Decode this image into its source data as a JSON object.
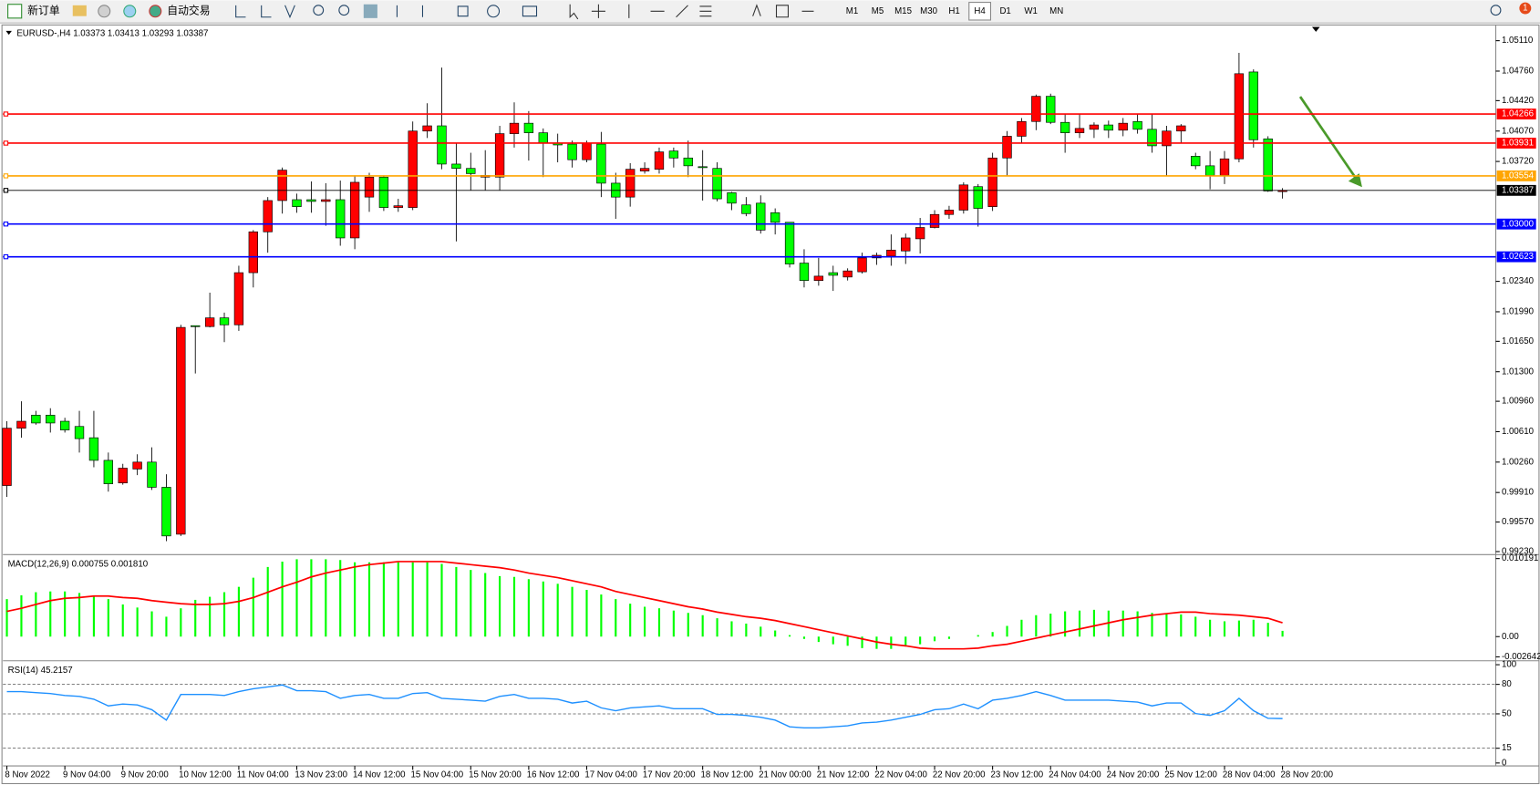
{
  "toolbar": {
    "new_order": "新订单",
    "auto_trading": "自动交易",
    "timeframes": [
      "M1",
      "M5",
      "M15",
      "M30",
      "H1",
      "H4",
      "D1",
      "W1",
      "MN"
    ],
    "active_timeframe": "H4",
    "notifications": "1"
  },
  "chart_data": [
    {
      "type": "candlestick",
      "title": "EURUSD-,H4  1.03373 1.03413 1.03293 1.03387",
      "up_color": "#ff0000",
      "down_color": "#00ff00",
      "ylim": [
        0.99206,
        1.05257
      ],
      "yticks": [
        {
          "value": 1.0511,
          "label": "1.05110"
        },
        {
          "value": 1.0476,
          "label": "1.04760"
        },
        {
          "value": 1.0442,
          "label": "1.04420"
        },
        {
          "value": 1.0407,
          "label": "1.04070"
        },
        {
          "value": 1.0372,
          "label": "1.03720"
        },
        {
          "value": 1.0234,
          "label": "1.02340"
        },
        {
          "value": 1.0199,
          "label": "1.01990"
        },
        {
          "value": 1.0165,
          "label": "1.01650"
        },
        {
          "value": 1.013,
          "label": "1.01300"
        },
        {
          "value": 1.0096,
          "label": "1.00960"
        },
        {
          "value": 1.0061,
          "label": "1.00610"
        },
        {
          "value": 1.0026,
          "label": "1.00260"
        },
        {
          "value": 0.9991,
          "label": "0.99910"
        },
        {
          "value": 0.9957,
          "label": "0.99570"
        },
        {
          "value": 0.9923,
          "label": "0.99230"
        }
      ],
      "x_labels": [
        "8 Nov 2022",
        "9 Nov 04:00",
        "9 Nov 20:00",
        "10 Nov 12:00",
        "11 Nov 04:00",
        "13 Nov 23:00",
        "14 Nov 12:00",
        "15 Nov 04:00",
        "15 Nov 20:00",
        "16 Nov 12:00",
        "17 Nov 04:00",
        "17 Nov 20:00",
        "18 Nov 12:00",
        "21 Nov 00:00",
        "21 Nov 12:00",
        "22 Nov 04:00",
        "22 Nov 20:00",
        "23 Nov 12:00",
        "24 Nov 04:00",
        "24 Nov 20:00",
        "25 Nov 12:00",
        "28 Nov 04:00",
        "28 Nov 20:00"
      ],
      "hlines": {
        "values": [
          1.04266,
          1.03931,
          1.03554,
          1.03387,
          1.03,
          1.02623
        ],
        "value_labels": [
          "1.04266",
          "1.03931",
          "1.03554",
          "1.03387",
          "1.03000",
          "1.02623"
        ],
        "colors": [
          "#ff0000",
          "#ff0000",
          "#ffa500",
          "#000000",
          "#0000ff",
          "#0000ff"
        ]
      },
      "ohlc": [
        [
          0.9999,
          1.0073,
          0.9986,
          1.0065
        ],
        [
          1.0065,
          1.0096,
          1.0054,
          1.0073
        ],
        [
          1.008,
          1.0085,
          1.0069,
          1.0071
        ],
        [
          1.008,
          1.0088,
          1.006,
          1.0071
        ],
        [
          1.0073,
          1.0077,
          1.006,
          1.0063
        ],
        [
          1.0067,
          1.0085,
          1.0037,
          1.0053
        ],
        [
          1.0054,
          1.0085,
          1.002,
          1.0028
        ],
        [
          1.0028,
          1.0037,
          0.9992,
          1.0001
        ],
        [
          1.0002,
          1.0024,
          1.0,
          1.0019
        ],
        [
          1.0018,
          1.0035,
          1.0011,
          1.0026
        ],
        [
          1.0026,
          1.0043,
          0.9994,
          0.9997
        ],
        [
          0.9997,
          1.0012,
          0.9935,
          0.9941
        ],
        [
          0.9943,
          1.0184,
          0.9941,
          1.0181
        ],
        [
          1.0183,
          1.0183,
          1.0128,
          1.0182
        ],
        [
          1.0182,
          1.0221,
          1.0181,
          1.0192
        ],
        [
          1.0192,
          1.0198,
          1.0164,
          1.0184
        ],
        [
          1.0184,
          1.0252,
          1.0177,
          1.0244
        ],
        [
          1.0244,
          1.0293,
          1.0227,
          1.0291
        ],
        [
          1.0291,
          1.0331,
          1.0267,
          1.0327
        ],
        [
          1.0327,
          1.0365,
          1.0312,
          1.0362
        ],
        [
          1.0328,
          1.0335,
          1.0313,
          1.032
        ],
        [
          1.0328,
          1.0349,
          1.0313,
          1.0326
        ],
        [
          1.0326,
          1.0347,
          1.0298,
          1.0328
        ],
        [
          1.0328,
          1.035,
          1.0275,
          1.0284
        ],
        [
          1.0284,
          1.0356,
          1.0271,
          1.0348
        ],
        [
          1.0331,
          1.0359,
          1.0314,
          1.0354
        ],
        [
          1.0354,
          1.0356,
          1.0315,
          1.0319
        ],
        [
          1.0319,
          1.0329,
          1.0314,
          1.0321
        ],
        [
          1.0319,
          1.0418,
          1.0316,
          1.0407
        ],
        [
          1.0407,
          1.0439,
          1.0399,
          1.0413
        ],
        [
          1.0413,
          1.048,
          1.0363,
          1.0369
        ],
        [
          1.0369,
          1.0393,
          1.028,
          1.0364
        ],
        [
          1.0364,
          1.0382,
          1.0339,
          1.0358
        ],
        [
          1.0354,
          1.0385,
          1.0339,
          1.0356
        ],
        [
          1.0354,
          1.0413,
          1.0339,
          1.0404
        ],
        [
          1.0404,
          1.044,
          1.0388,
          1.0416
        ],
        [
          1.0416,
          1.043,
          1.0373,
          1.0405
        ],
        [
          1.0405,
          1.041,
          1.0354,
          1.0393
        ],
        [
          1.0393,
          1.0404,
          1.0371,
          1.0391
        ],
        [
          1.0392,
          1.0396,
          1.0365,
          1.0374
        ],
        [
          1.0374,
          1.0396,
          1.0371,
          1.0393
        ],
        [
          1.0392,
          1.0406,
          1.0331,
          1.0347
        ],
        [
          1.0347,
          1.0359,
          1.0306,
          1.0331
        ],
        [
          1.0331,
          1.037,
          1.032,
          1.0363
        ],
        [
          1.0361,
          1.0371,
          1.0358,
          1.0364
        ],
        [
          1.0363,
          1.0388,
          1.0358,
          1.0383
        ],
        [
          1.0384,
          1.0388,
          1.0365,
          1.0376
        ],
        [
          1.0376,
          1.0396,
          1.0354,
          1.0367
        ],
        [
          1.0366,
          1.0385,
          1.0327,
          1.0365
        ],
        [
          1.0364,
          1.0371,
          1.0326,
          1.0329
        ],
        [
          1.0336,
          1.0337,
          1.0316,
          1.0324
        ],
        [
          1.0322,
          1.0331,
          1.0309,
          1.0312
        ],
        [
          1.0324,
          1.0333,
          1.0289,
          1.0293
        ],
        [
          1.0313,
          1.0318,
          1.0288,
          1.0302
        ],
        [
          1.0302,
          1.0302,
          1.025,
          1.0254
        ],
        [
          1.0255,
          1.0271,
          1.0227,
          1.0235
        ],
        [
          1.0235,
          1.0261,
          1.0229,
          1.024
        ],
        [
          1.0244,
          1.0252,
          1.0223,
          1.0241
        ],
        [
          1.0239,
          1.0249,
          1.0235,
          1.0246
        ],
        [
          1.0245,
          1.0267,
          1.0243,
          1.0261
        ],
        [
          1.0261,
          1.0267,
          1.0253,
          1.0264
        ],
        [
          1.0263,
          1.0288,
          1.0252,
          1.027
        ],
        [
          1.0269,
          1.0289,
          1.0254,
          1.0284
        ],
        [
          1.0283,
          1.0307,
          1.0266,
          1.0296
        ],
        [
          1.0296,
          1.0316,
          1.0295,
          1.0311
        ],
        [
          1.0311,
          1.0321,
          1.0306,
          1.0316
        ],
        [
          1.0316,
          1.0348,
          1.0312,
          1.0345
        ],
        [
          1.0343,
          1.0346,
          1.0297,
          1.0318
        ],
        [
          1.032,
          1.0382,
          1.0315,
          1.0376
        ],
        [
          1.0376,
          1.0407,
          1.0356,
          1.0401
        ],
        [
          1.0401,
          1.0422,
          1.0393,
          1.0418
        ],
        [
          1.0418,
          1.0449,
          1.0408,
          1.0447
        ],
        [
          1.0447,
          1.045,
          1.0415,
          1.0417
        ],
        [
          1.0417,
          1.0427,
          1.0382,
          1.0405
        ],
        [
          1.0405,
          1.0427,
          1.0399,
          1.041
        ],
        [
          1.0409,
          1.0417,
          1.0399,
          1.0414
        ],
        [
          1.0414,
          1.0419,
          1.0399,
          1.0408
        ],
        [
          1.0408,
          1.0422,
          1.0401,
          1.0416
        ],
        [
          1.0418,
          1.0427,
          1.0404,
          1.0409
        ],
        [
          1.0409,
          1.0427,
          1.0382,
          1.039
        ],
        [
          1.039,
          1.0413,
          1.0355,
          1.0407
        ],
        [
          1.0407,
          1.0415,
          1.0393,
          1.0413
        ],
        [
          1.0378,
          1.0382,
          1.0363,
          1.0367
        ],
        [
          1.0367,
          1.0384,
          1.034,
          1.0356
        ],
        [
          1.0356,
          1.0384,
          1.0346,
          1.0375
        ],
        [
          1.0375,
          1.0497,
          1.0371,
          1.0473
        ],
        [
          1.0475,
          1.0478,
          1.0388,
          1.0397
        ],
        [
          1.0398,
          1.0401,
          1.0337,
          1.0338
        ],
        [
          1.03373,
          1.03413,
          1.03293,
          1.03387
        ]
      ]
    },
    {
      "type": "macd",
      "title": "MACD(12,26,9) 0.000755 0.001810",
      "ylim": [
        -0.002642,
        0.010191
      ],
      "yticks": [
        0.010191,
        {
          "value": 0,
          "label": "0.00"
        },
        -0.002642
      ],
      "series": [
        {
          "color": "#00ff00",
          "values": [
            0.0049,
            0.0054,
            0.0058,
            0.0059,
            0.0059,
            0.0057,
            0.0053,
            0.0049,
            0.0042,
            0.0038,
            0.0033,
            0.0026,
            0.0037,
            0.0048,
            0.0052,
            0.0058,
            0.0065,
            0.0077,
            0.0091,
            0.0098,
            0.0101,
            0.0101,
            0.0101,
            0.01,
            0.0097,
            0.0097,
            0.0097,
            0.0097,
            0.0097,
            0.0097,
            0.0095,
            0.0091,
            0.0087,
            0.0083,
            0.0079,
            0.0078,
            0.0075,
            0.0072,
            0.0069,
            0.0065,
            0.0061,
            0.0055,
            0.0049,
            0.0043,
            0.0039,
            0.0037,
            0.0034,
            0.0031,
            0.0028,
            0.0024,
            0.002,
            0.0017,
            0.0013,
            0.0008,
            0.0002,
            -0.0003,
            -0.0007,
            -0.001,
            -0.0012,
            -0.0015,
            -0.0016,
            -0.0016,
            -0.0013,
            -0.001,
            -0.0006,
            -0.0003,
            0.0,
            0.0002,
            0.0006,
            0.0014,
            0.0022,
            0.0028,
            0.003,
            0.0033,
            0.0034,
            0.0035,
            0.0034,
            0.0034,
            0.0033,
            0.0031,
            0.003,
            0.0029,
            0.0026,
            0.0022,
            0.002,
            0.0021,
            0.0022,
            0.0018,
            0.000755
          ]
        },
        {
          "color": "#ff0000",
          "values": [
            0.0033,
            0.0037,
            0.0042,
            0.0047,
            0.005,
            0.0051,
            0.0053,
            0.0053,
            0.0051,
            0.005,
            0.0047,
            0.0045,
            0.0043,
            0.0042,
            0.0042,
            0.0043,
            0.0046,
            0.0051,
            0.0058,
            0.0065,
            0.0071,
            0.0078,
            0.0083,
            0.0087,
            0.0091,
            0.0094,
            0.0096,
            0.0098,
            0.0098,
            0.0098,
            0.0098,
            0.0096,
            0.0094,
            0.0092,
            0.009,
            0.0087,
            0.0083,
            0.008,
            0.0077,
            0.0073,
            0.0069,
            0.0065,
            0.0059,
            0.0055,
            0.0051,
            0.0047,
            0.0043,
            0.0039,
            0.0036,
            0.0032,
            0.0029,
            0.0026,
            0.0024,
            0.0021,
            0.0017,
            0.0013,
            0.0009,
            0.0005,
            0.0001,
            -0.0003,
            -0.0007,
            -0.001,
            -0.0012,
            -0.0015,
            -0.0016,
            -0.0016,
            -0.0016,
            -0.0015,
            -0.0012,
            -0.001,
            -0.0006,
            -0.0002,
            0.0002,
            0.0006,
            0.001,
            0.0014,
            0.0018,
            0.0022,
            0.0025,
            0.0028,
            0.003,
            0.0032,
            0.0032,
            0.003,
            0.0029,
            0.0028,
            0.0026,
            0.0024,
            0.00181
          ]
        }
      ]
    },
    {
      "type": "rsi",
      "title": "RSI(14) 45.2157",
      "color": "#1e90ff",
      "ylim": [
        0,
        100
      ],
      "yticks": [
        100,
        80,
        50,
        15,
        0
      ],
      "levels": [
        80,
        50,
        15
      ],
      "values": [
        72.6,
        72.6,
        71.6,
        70.7,
        68.7,
        67.8,
        64.9,
        58.1,
        60.0,
        59.1,
        54.2,
        43.6,
        69.7,
        69.7,
        69.7,
        68.7,
        72.6,
        75.5,
        77.4,
        79.4,
        73.6,
        73.6,
        72.6,
        65.8,
        68.7,
        69.7,
        65.8,
        65.8,
        70.7,
        71.6,
        65.8,
        64.9,
        63.9,
        62.9,
        67.8,
        69.7,
        65.8,
        65.8,
        64.9,
        61.0,
        62.9,
        56.1,
        53.2,
        56.1,
        57.1,
        58.1,
        55.2,
        55.2,
        55.2,
        49.4,
        49.4,
        48.4,
        46.5,
        43.6,
        36.8,
        35.8,
        35.8,
        36.8,
        37.8,
        40.7,
        41.6,
        43.6,
        46.5,
        49.4,
        54.2,
        55.2,
        60.0,
        55.2,
        63.9,
        65.8,
        68.7,
        72.6,
        68.7,
        63.9,
        63.9,
        63.9,
        63.9,
        62.9,
        62.0,
        58.1,
        61.0,
        61.0,
        50.3,
        48.4,
        53.2,
        65.8,
        53.2,
        45.5,
        45.2157
      ]
    }
  ]
}
